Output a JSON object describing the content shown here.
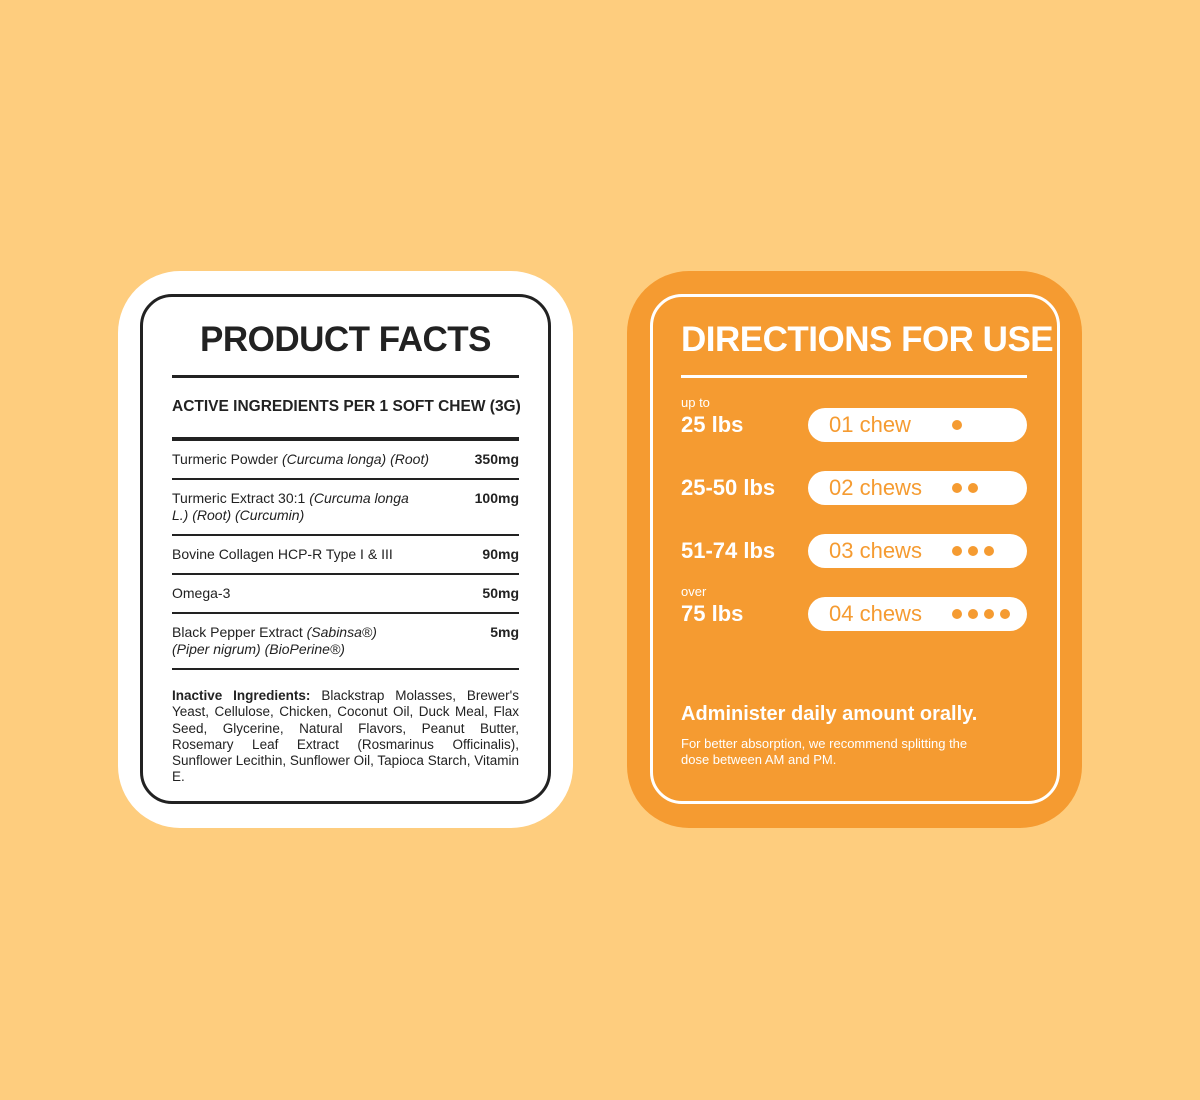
{
  "facts": {
    "title": "PRODUCT FACTS",
    "subtitle": "ACTIVE INGREDIENTS PER 1 SOFT CHEW (3G)",
    "ingredients": [
      {
        "name": "Turmeric Powder ",
        "latin": "(Curcuma longa) (Root)",
        "amount": "350mg"
      },
      {
        "name": "Turmeric Extract 30:1 ",
        "latin": "(Curcuma longa L.) (Root) (Curcumin)",
        "amount": "100mg"
      },
      {
        "name": "Bovine Collagen HCP-R Type I & III",
        "latin": "",
        "amount": "90mg"
      },
      {
        "name": "Omega-3",
        "latin": "",
        "amount": "50mg"
      },
      {
        "name": "Black Pepper Extract ",
        "latin": "(Sabinsa®) (Piper nigrum) (BioPerine®)",
        "amount": "5mg"
      }
    ],
    "inactive_label": "Inactive Ingredients:",
    "inactive_text": " Blackstrap Molasses, Brewer's Yeast, Cellulose, Chicken, Coconut Oil, Duck Meal, Flax Seed, Glycerine, Natural Flavors, Peanut Butter, Rosemary Leaf Extract (Rosmarinus Officinalis), Sunflower Lecithin, Sunflower Oil, Tapioca Starch, Vitamin E."
  },
  "directions": {
    "title": "DIRECTIONS FOR USE",
    "doses": [
      {
        "prefix": "up to",
        "weight": "25 lbs",
        "chews": "01 chew",
        "count": 1
      },
      {
        "prefix": "",
        "weight": "25-50 lbs",
        "chews": "02 chews",
        "count": 2
      },
      {
        "prefix": "",
        "weight": "51-74 lbs",
        "chews": "03 chews",
        "count": 3
      },
      {
        "prefix": "over",
        "weight": "75 lbs",
        "chews": "04 chews",
        "count": 4
      }
    ],
    "note_title": "Administer daily amount orally.",
    "note_text": "For better absorption, we recommend splitting the dose between AM and PM."
  },
  "colors": {
    "background": "#fecd7e",
    "accent": "#f59b31"
  }
}
